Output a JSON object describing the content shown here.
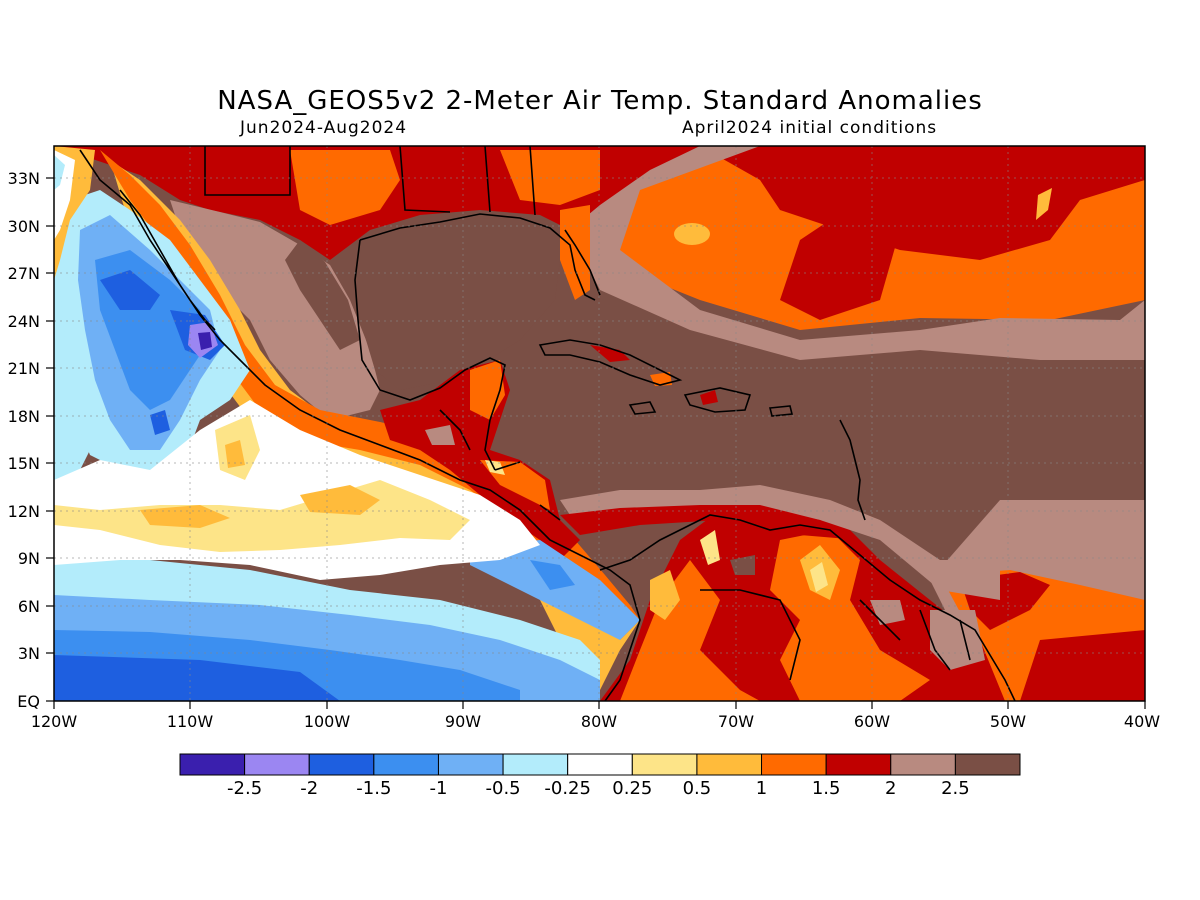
{
  "title": "NASA_GEOS5v2 2-Meter Air Temp. Standard Anomalies",
  "subtitle_left": "Jun2024-Aug2024",
  "subtitle_right": "April2024 initial conditions",
  "lat_ticks": [
    "33N",
    "30N",
    "27N",
    "24N",
    "21N",
    "18N",
    "15N",
    "12N",
    "9N",
    "6N",
    "3N",
    "EQ"
  ],
  "lon_ticks": [
    "120W",
    "110W",
    "100W",
    "90W",
    "80W",
    "70W",
    "60W",
    "50W",
    "40W"
  ],
  "colorbar": {
    "colors": [
      "#3a1fae",
      "#9b86f2",
      "#1e5fe0",
      "#3c8ff0",
      "#6fb0f5",
      "#b3ecfb",
      "#ffffff",
      "#fde488",
      "#ffbb3b",
      "#ff6a00",
      "#c00000",
      "#b88a80",
      "#7a4f45"
    ],
    "labels": [
      "-2.5",
      "-2",
      "-1.5",
      "-1",
      "-0.5",
      "-0.25",
      "0.25",
      "0.5",
      "1",
      "1.5",
      "2",
      "2.5"
    ]
  }
}
